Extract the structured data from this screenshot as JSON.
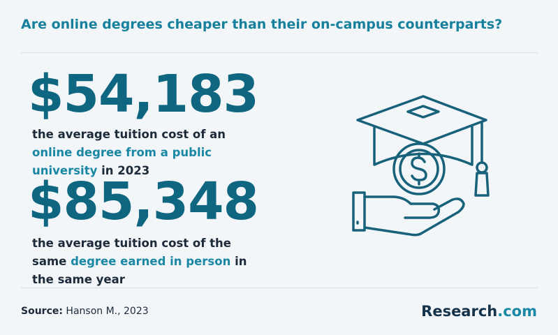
{
  "title": "Are online degrees cheaper than their on-campus counterparts?",
  "stats": [
    {
      "value": "$54,183",
      "description": [
        {
          "text": "the average tuition cost of an ",
          "highlight": false
        },
        {
          "text": "online degree from a public university",
          "highlight": true
        },
        {
          "text": " in 2023",
          "highlight": false
        }
      ]
    },
    {
      "value": "$85,348",
      "description": [
        {
          "text": "the average tuition cost of the same ",
          "highlight": false
        },
        {
          "text": "degree earned in person",
          "highlight": true
        },
        {
          "text": " in the same year",
          "highlight": false
        }
      ]
    }
  ],
  "source": {
    "label": "Source:",
    "text": "Hanson M., 2023"
  },
  "brand": {
    "name": "Research",
    "suffix": ".com"
  }
}
